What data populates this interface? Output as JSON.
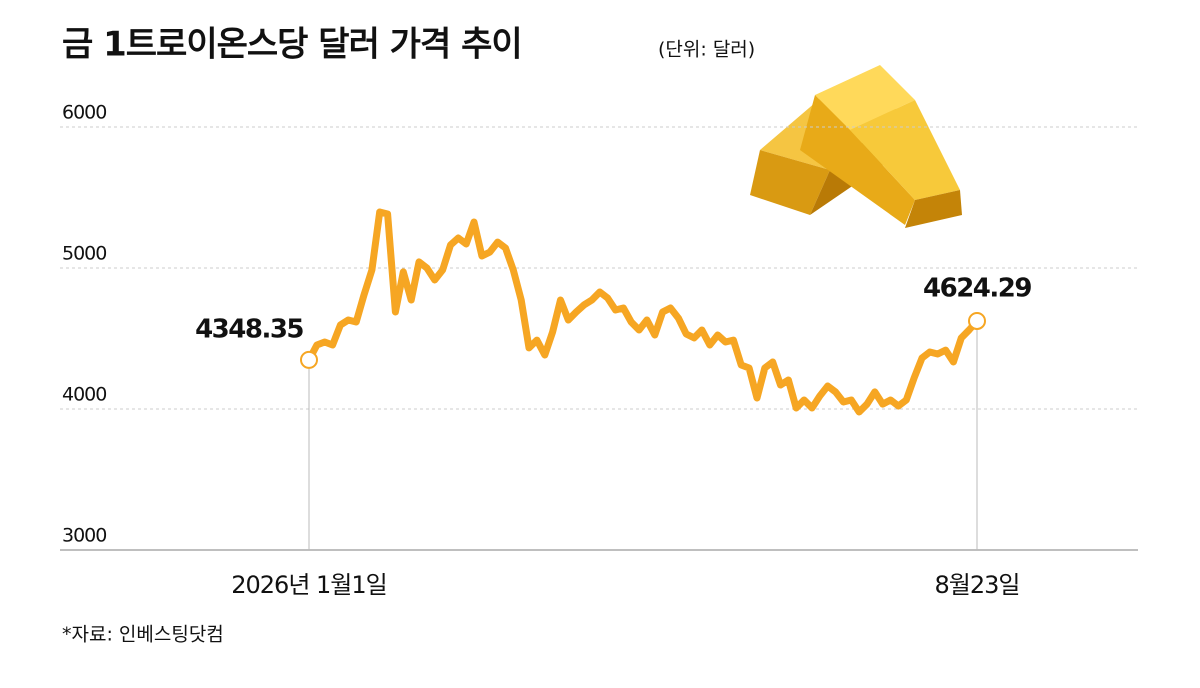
{
  "title": "금 1트로이온스당 달러 가격 추이",
  "subtitle": "(단위: 달러)",
  "source": "*자료: 인베스팅닷컴",
  "chart_data": {
    "type": "line",
    "color": "#f6a623",
    "categories": [
      "2026년 1월1일",
      null,
      null,
      null,
      null,
      null,
      null,
      null,
      null,
      null,
      null,
      null,
      null,
      null,
      null,
      null,
      null,
      null,
      null,
      null,
      null,
      null,
      null,
      null,
      null,
      null,
      null,
      null,
      null,
      null,
      null,
      null,
      null,
      null,
      null,
      null,
      null,
      null,
      null,
      null,
      null,
      null,
      null,
      null,
      null,
      null,
      null,
      null,
      null,
      null,
      null,
      null,
      null,
      null,
      null,
      null,
      null,
      null,
      null,
      null,
      null,
      null,
      null,
      null,
      null,
      null,
      null,
      null,
      null,
      null,
      null,
      null,
      null,
      null,
      null,
      null,
      null,
      null,
      null,
      null,
      null,
      null,
      null,
      null,
      null,
      "8월23일"
    ],
    "values": [
      4348.35,
      4454,
      4475,
      4454,
      4596,
      4631,
      4617,
      4809,
      4986,
      5397,
      5383,
      4688,
      4972,
      4773,
      5043,
      5000,
      4915,
      4986,
      5163,
      5213,
      5170,
      5326,
      5085,
      5113,
      5184,
      5142,
      4986,
      4773,
      4433,
      4489,
      4383,
      4546,
      4773,
      4631,
      4688,
      4738,
      4773,
      4830,
      4787,
      4702,
      4716,
      4617,
      4560,
      4631,
      4525,
      4688,
      4716,
      4645,
      4532,
      4504,
      4560,
      4454,
      4525,
      4475,
      4489,
      4312,
      4291,
      4078,
      4291,
      4333,
      4170,
      4206,
      4007,
      4064,
      4007,
      4092,
      4163,
      4121,
      4050,
      4064,
      3979,
      4035,
      4121,
      4035,
      4064,
      4021,
      4064,
      4220,
      4362,
      4404,
      4390,
      4418,
      4333,
      4504,
      4560,
      4624.29
    ],
    "ylim": [
      3000,
      6000
    ],
    "yticks": [
      3000,
      4000,
      5000,
      6000
    ],
    "grid": true
  }
}
